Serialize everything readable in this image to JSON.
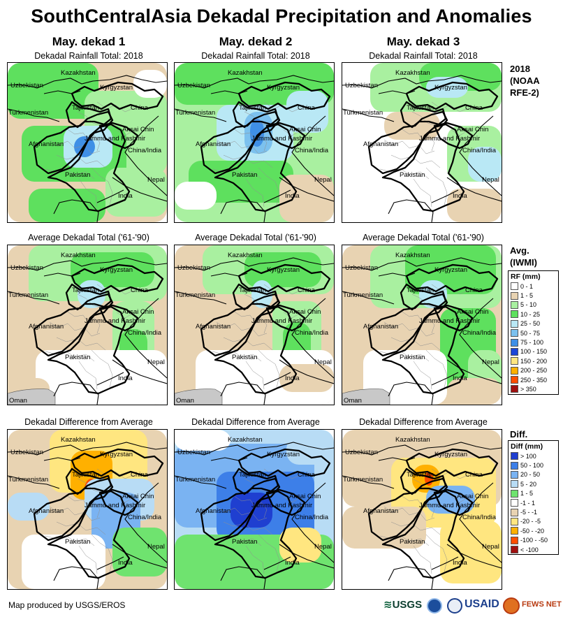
{
  "title": "SouthCentralAsia Dekadal Precipitation and Anomalies",
  "columns": [
    "May. dekad 1",
    "May. dekad 2",
    "May. dekad 3"
  ],
  "row_titles": {
    "rainfall": "Dekadal Rainfall Total: 2018",
    "average": "Average Dekadal Total ('61-'90)",
    "difference": "Dekadal Difference from Average"
  },
  "row_labels": {
    "rainfall": [
      "2018",
      "(NOAA",
      "RFE-2)"
    ],
    "average": [
      "Avg.",
      "(IWMI)"
    ],
    "difference": [
      "Diff."
    ]
  },
  "places": {
    "kazakhstan": "Kazakhstan",
    "uzbekistan": "Uzbekistan",
    "kyrgyzstan": "Kyrgyzstan",
    "turkmenistan": "Turkmenistan",
    "tajikistan": "Tajikistan",
    "china": "China",
    "aksai_chin": "Aksai Chin",
    "jammu_kashmir": "Jammu and Kashmir",
    "china_india": "China/India",
    "afghanistan": "Afghanistan",
    "pakistan": "Pakistan",
    "nepal": "Nepal",
    "india": "India",
    "oman": "Oman"
  },
  "rf_legend": {
    "header": "RF (mm)",
    "items": [
      {
        "label": "0 - 1",
        "color": "#ffffff"
      },
      {
        "label": "1 - 5",
        "color": "#e8d3b2"
      },
      {
        "label": "5 - 10",
        "color": "#a9f0a0"
      },
      {
        "label": "10 - 25",
        "color": "#5ee05e"
      },
      {
        "label": "25 - 50",
        "color": "#b9e8f5"
      },
      {
        "label": "50 - 75",
        "color": "#7cc1ee"
      },
      {
        "label": "75 - 100",
        "color": "#3f8fe6"
      },
      {
        "label": "100 - 150",
        "color": "#1b45d8"
      },
      {
        "label": "150 - 200",
        "color": "#ffe680"
      },
      {
        "label": "200 - 250",
        "color": "#ffb000"
      },
      {
        "label": "250 - 350",
        "color": "#ff4d00"
      },
      {
        "label": "> 350",
        "color": "#a01010"
      }
    ]
  },
  "diff_legend": {
    "header": "Diff (mm)",
    "items": [
      {
        "label": "> 100",
        "color": "#1f3fd0"
      },
      {
        "label": "50 - 100",
        "color": "#3d7fe8"
      },
      {
        "label": "20 - 50",
        "color": "#7ab3f2"
      },
      {
        "label": "5 - 20",
        "color": "#b8dcf5"
      },
      {
        "label": "1 - 5",
        "color": "#6fe36f"
      },
      {
        "label": "-1 - 1",
        "color": "#ffffff"
      },
      {
        "label": "-5 - -1",
        "color": "#e8d3b2"
      },
      {
        "label": "-20 - -5",
        "color": "#ffe680"
      },
      {
        "label": "-50 - -20",
        "color": "#ffb000"
      },
      {
        "label": "-100 - -50",
        "color": "#ff4d00"
      },
      {
        "label": "< -100",
        "color": "#a01010"
      }
    ]
  },
  "footer": "Map produced by USGS/EROS",
  "logos": [
    "USGS",
    "USAID",
    "FEWS NET"
  ]
}
